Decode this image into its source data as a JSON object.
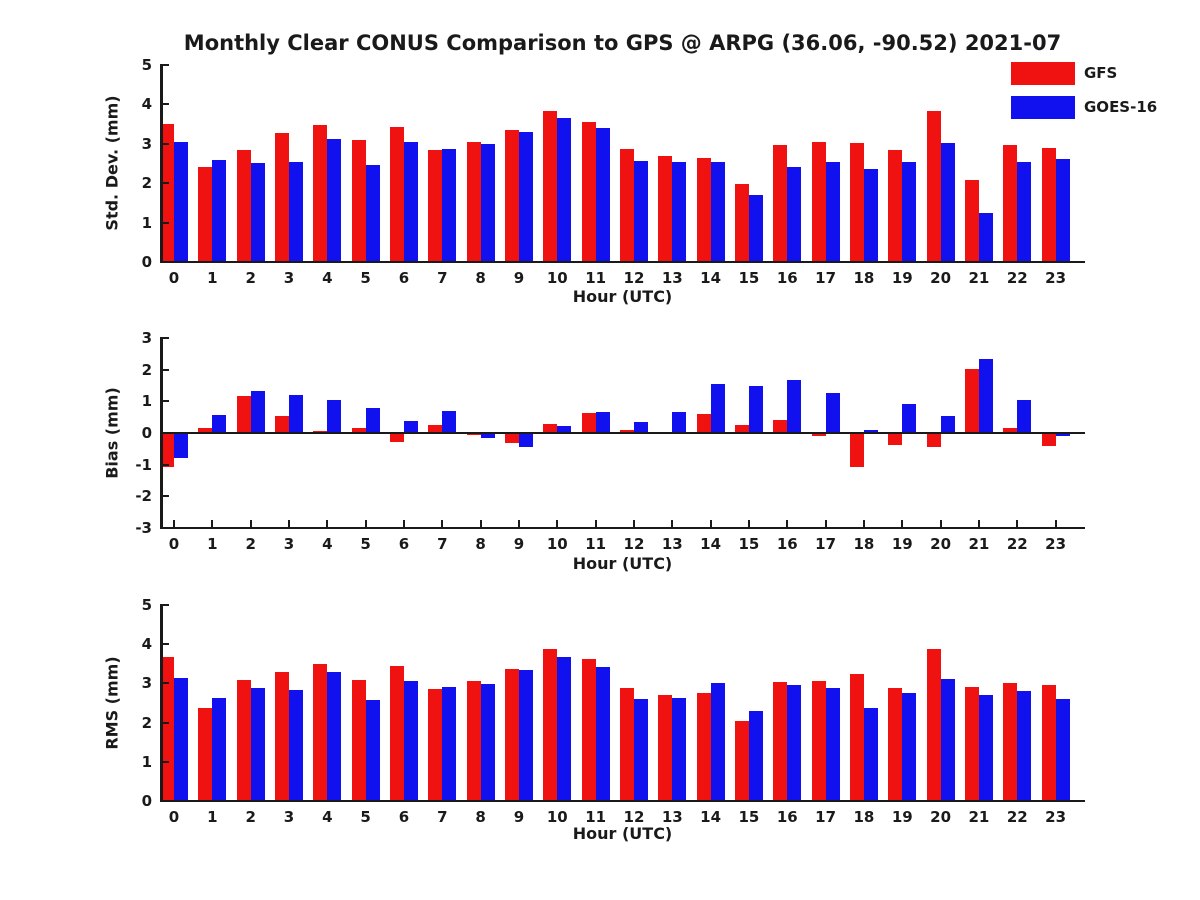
{
  "title": "Monthly Clear CONUS Comparison to GPS @ ARPG (36.06, -90.52) 2021-07",
  "colors": {
    "gfs": "#f01111",
    "goes16": "#1111f0",
    "axis": "#1a1a1a",
    "background": "#ffffff"
  },
  "legend": {
    "position": "top-right",
    "items": [
      {
        "label": "GFS",
        "color": "#f01111"
      },
      {
        "label": "GOES-16",
        "color": "#1111f0"
      }
    ]
  },
  "chart_data": [
    {
      "type": "bar",
      "panel": "std-dev",
      "ylabel": "Std. Dev. (mm)",
      "xlabel": "Hour (UTC)",
      "ylim": [
        0,
        5
      ],
      "yticks": [
        0,
        1,
        2,
        3,
        4,
        5
      ],
      "grid": false,
      "categories": [
        "0",
        "1",
        "2",
        "3",
        "4",
        "5",
        "6",
        "7",
        "8",
        "9",
        "10",
        "11",
        "12",
        "13",
        "14",
        "15",
        "16",
        "17",
        "18",
        "19",
        "20",
        "21",
        "22",
        "23"
      ],
      "series": [
        {
          "name": "GFS",
          "color": "#f01111",
          "values": [
            3.5,
            2.4,
            2.85,
            3.27,
            3.48,
            3.1,
            3.42,
            2.83,
            3.05,
            3.35,
            3.83,
            3.55,
            2.88,
            2.7,
            2.65,
            1.98,
            2.98,
            3.05,
            3.03,
            2.85,
            3.82,
            2.08,
            2.98,
            2.9
          ]
        },
        {
          "name": "GOES-16",
          "color": "#1111f0",
          "values": [
            3.05,
            2.6,
            2.52,
            2.55,
            3.12,
            2.45,
            3.05,
            2.87,
            3.0,
            3.3,
            3.65,
            3.4,
            2.57,
            2.55,
            2.55,
            1.7,
            2.42,
            2.53,
            2.35,
            2.55,
            3.03,
            1.25,
            2.55,
            2.62
          ]
        }
      ]
    },
    {
      "type": "bar",
      "panel": "bias",
      "ylabel": "Bias (mm)",
      "xlabel": "Hour (UTC)",
      "ylim": [
        -3,
        3
      ],
      "yticks": [
        -3,
        -2,
        -1,
        0,
        1,
        2,
        3
      ],
      "grid": false,
      "categories": [
        "0",
        "1",
        "2",
        "3",
        "4",
        "5",
        "6",
        "7",
        "8",
        "9",
        "10",
        "11",
        "12",
        "13",
        "14",
        "15",
        "16",
        "17",
        "18",
        "19",
        "20",
        "21",
        "22",
        "23"
      ],
      "series": [
        {
          "name": "GFS",
          "color": "#f01111",
          "values": [
            -1.08,
            0.17,
            1.18,
            0.55,
            0.07,
            0.15,
            -0.28,
            0.24,
            -0.05,
            -0.33,
            0.27,
            0.62,
            0.1,
            0.02,
            0.6,
            0.25,
            0.42,
            -0.08,
            -1.07,
            -0.38,
            -0.45,
            2.02,
            0.16,
            -0.4
          ]
        },
        {
          "name": "GOES-16",
          "color": "#1111f0",
          "values": [
            -0.78,
            0.57,
            1.33,
            1.2,
            1.05,
            0.8,
            0.37,
            0.7,
            -0.16,
            -0.43,
            0.22,
            0.67,
            0.36,
            0.65,
            1.55,
            1.48,
            1.67,
            1.25,
            0.1,
            0.92,
            0.53,
            2.35,
            1.05,
            -0.09
          ]
        }
      ]
    },
    {
      "type": "bar",
      "panel": "rms",
      "ylabel": "RMS (mm)",
      "xlabel": "Hour (UTC)",
      "ylim": [
        0,
        5
      ],
      "yticks": [
        0,
        1,
        2,
        3,
        4,
        5
      ],
      "grid": false,
      "categories": [
        "0",
        "1",
        "2",
        "3",
        "4",
        "5",
        "6",
        "7",
        "8",
        "9",
        "10",
        "11",
        "12",
        "13",
        "14",
        "15",
        "16",
        "17",
        "18",
        "19",
        "20",
        "21",
        "22",
        "23"
      ],
      "series": [
        {
          "name": "GFS",
          "color": "#f01111",
          "values": [
            3.68,
            2.38,
            3.08,
            3.3,
            3.5,
            3.08,
            3.45,
            2.85,
            3.05,
            3.37,
            3.88,
            3.62,
            2.88,
            2.7,
            2.75,
            2.05,
            3.03,
            3.07,
            3.25,
            2.88,
            3.87,
            2.92,
            3.0,
            2.95
          ]
        },
        {
          "name": "GOES-16",
          "color": "#1111f0",
          "values": [
            3.13,
            2.63,
            2.87,
            2.83,
            3.3,
            2.57,
            3.07,
            2.92,
            2.98,
            3.33,
            3.67,
            3.43,
            2.6,
            2.63,
            3.0,
            2.3,
            2.97,
            2.87,
            2.37,
            2.75,
            3.1,
            2.7,
            2.8,
            2.6
          ]
        }
      ]
    }
  ]
}
